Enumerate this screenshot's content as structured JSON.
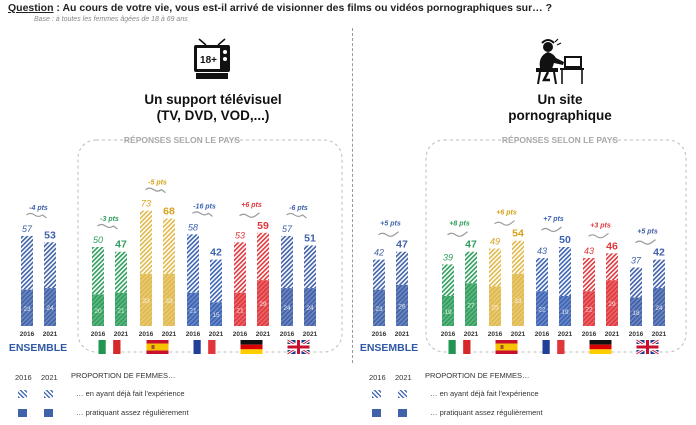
{
  "question": {
    "label": "Question",
    "text": " : Au cours de votre vie, vous est-il arrivé de visionner des films ou vidéos pornographiques sur… ?"
  },
  "base": "Base : à toutes les femmes âgées de 18 à 69 ans",
  "panels": [
    {
      "title_line1": "Un support télévisuel",
      "title_line2": "(TV, DVD, VOD,...)",
      "icon": "tv-18plus-icon",
      "responses_label": "RÉPONSES SELON LE PAYS"
    },
    {
      "title_line1": "Un site",
      "title_line2": "pornographique",
      "icon": "woman-at-computer-icon",
      "responses_label": "RÉPONSES SELON LE PAYS"
    }
  ],
  "legend": {
    "year1": "2016",
    "year2": "2021",
    "heading": "PROPORTION DE FEMMES…",
    "item1": "… en ayant déjà fait l'expérience",
    "item2": "… pratiquant assez régulièrement"
  },
  "chart_data": [
    {
      "type": "bar",
      "title": "Un support télévisuel (TV, DVD, VOD,...)",
      "categories": [
        "ENSEMBLE",
        "Italie",
        "Espagne",
        "France",
        "Allemagne",
        "Royaume-Uni"
      ],
      "x_ticks": [
        "2016",
        "2021"
      ],
      "series": [
        {
          "name": "… en ayant déjà fait l'expérience",
          "values_2016": [
            57,
            50,
            73,
            58,
            53,
            57
          ],
          "values_2021": [
            53,
            47,
            68,
            42,
            59,
            51
          ]
        },
        {
          "name": "… pratiquant assez régulièrement",
          "values_2016": [
            23,
            20,
            33,
            21,
            21,
            24
          ],
          "values_2021": [
            24,
            21,
            33,
            15,
            29,
            24
          ]
        }
      ],
      "changes": [
        "-4 pts",
        "-3 pts",
        "-5 pts",
        "-16 pts",
        "+6 pts",
        "-6 pts"
      ],
      "colors": [
        "#3f62a8",
        "#2e9e5b",
        "#e0b84a",
        "#3a62b3",
        "#e0363b",
        "#3f5fa8"
      ],
      "change_colors": [
        "#3f62a8",
        "#2e9e5b",
        "#d6a21a",
        "#3a62b3",
        "#e0363b",
        "#3f5fa8"
      ]
    },
    {
      "type": "bar",
      "title": "Un site pornographique",
      "categories": [
        "ENSEMBLE",
        "Italie",
        "Espagne",
        "France",
        "Allemagne",
        "Royaume-Uni"
      ],
      "x_ticks": [
        "2016",
        "2021"
      ],
      "series": [
        {
          "name": "… en ayant déjà fait l'expérience",
          "values_2016": [
            42,
            39,
            49,
            43,
            43,
            37
          ],
          "values_2021": [
            47,
            47,
            54,
            50,
            46,
            42
          ]
        },
        {
          "name": "… pratiquant assez régulièrement",
          "values_2016": [
            23,
            19,
            25,
            22,
            22,
            18
          ],
          "values_2021": [
            26,
            27,
            33,
            19,
            29,
            24
          ]
        }
      ],
      "changes": [
        "+5 pts",
        "+8 pts",
        "+6 pts",
        "+7 pts",
        "+3 pts",
        "+5 pts"
      ],
      "colors": [
        "#3f62a8",
        "#2e9e5b",
        "#e0b84a",
        "#3a62b3",
        "#e0363b",
        "#3f5fa8"
      ],
      "change_colors": [
        "#3f62a8",
        "#2e9e5b",
        "#d6a21a",
        "#3a62b3",
        "#e0363b",
        "#3f5fa8"
      ]
    }
  ]
}
